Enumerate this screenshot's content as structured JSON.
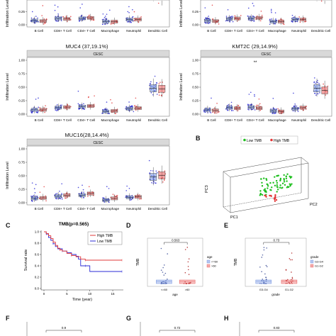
{
  "colors": {
    "low": "#2b2bd6",
    "high": "#e23838",
    "box_low": "#6f8fe0",
    "box_high": "#e85858",
    "strip": "#d9d9d9",
    "green": "#1fbf1f"
  },
  "boxplots": {
    "ylabel": "Infiltration Level",
    "yticks": [
      "0.00",
      "0.25",
      "0.50",
      "0.75",
      "1.00"
    ],
    "categories": [
      "B Cell",
      "CD8+ T Cell",
      "CD4+ T Cell",
      "Macrophage",
      "Neutrophil",
      "Dendritic Cell"
    ],
    "strip_label": "CESC",
    "top_left": {
      "title": "",
      "medians_low": [
        0.08,
        0.12,
        0.12,
        0.06,
        0.1,
        0.6
      ],
      "medians_high": [
        0.07,
        0.11,
        0.13,
        0.06,
        0.1,
        0.52
      ]
    },
    "top_right": {
      "title": "",
      "medians_low": [
        0.08,
        0.11,
        0.12,
        0.06,
        0.1,
        0.6
      ],
      "medians_high": [
        0.07,
        0.12,
        0.13,
        0.06,
        0.1,
        0.55
      ]
    },
    "muc4": {
      "title": "MUC4 (37,19.1%)",
      "sig": "",
      "medians_low": [
        0.08,
        0.12,
        0.14,
        0.05,
        0.1,
        0.48
      ],
      "medians_high": [
        0.08,
        0.13,
        0.15,
        0.06,
        0.11,
        0.47
      ]
    },
    "kmt2c": {
      "title": "KMT2C (29,14.9%)",
      "sig": "**",
      "medians_low": [
        0.08,
        0.12,
        0.13,
        0.06,
        0.1,
        0.48
      ],
      "medians_high": [
        0.07,
        0.11,
        0.11,
        0.05,
        0.12,
        0.44
      ]
    },
    "muc16": {
      "title": "MUC16(28,14.4%)",
      "sig": "",
      "medians_low": [
        0.08,
        0.12,
        0.14,
        0.05,
        0.1,
        0.48
      ],
      "medians_high": [
        0.09,
        0.14,
        0.17,
        0.08,
        0.11,
        0.51
      ]
    }
  },
  "panel_b": {
    "letter": "B",
    "legend": [
      "Low TMB",
      "High TMB"
    ],
    "axes": [
      "PC1",
      "PC2",
      "PC3"
    ]
  },
  "panel_c": {
    "letter": "C",
    "title": "TMB(p=0.565)",
    "legend": [
      "High TMB",
      "Low TMB"
    ],
    "xlabel": "Time (year)",
    "ylabel": "Survival rate",
    "xticks": [
      "0",
      "5",
      "10",
      "15"
    ],
    "yticks": [
      "0.0",
      "0.2",
      "0.4",
      "0.6",
      "0.8",
      "1.0"
    ],
    "high_tmb": [
      [
        0,
        1.0
      ],
      [
        0.5,
        0.97
      ],
      [
        1,
        0.93
      ],
      [
        1.5,
        0.88
      ],
      [
        2,
        0.82
      ],
      [
        2.5,
        0.76
      ],
      [
        3,
        0.71
      ],
      [
        3.5,
        0.68
      ],
      [
        4,
        0.66
      ],
      [
        5,
        0.62
      ],
      [
        6,
        0.58
      ],
      [
        7,
        0.56
      ],
      [
        8,
        0.52
      ],
      [
        9,
        0.5
      ],
      [
        10,
        0.5
      ],
      [
        12,
        0.5
      ],
      [
        17,
        0.5
      ]
    ],
    "low_tmb": [
      [
        0,
        1.0
      ],
      [
        0.5,
        0.96
      ],
      [
        1,
        0.9
      ],
      [
        1.5,
        0.85
      ],
      [
        2,
        0.79
      ],
      [
        2.5,
        0.74
      ],
      [
        3,
        0.7
      ],
      [
        4,
        0.66
      ],
      [
        5,
        0.63
      ],
      [
        6,
        0.6
      ],
      [
        7,
        0.57
      ],
      [
        7.5,
        0.52
      ],
      [
        8,
        0.4
      ],
      [
        9,
        0.4
      ],
      [
        10,
        0.3
      ],
      [
        11,
        0.3
      ],
      [
        17,
        0.3
      ]
    ]
  },
  "panel_d": {
    "letter": "D",
    "pvalue": "0.563",
    "xlabel": "age",
    "ylabel": "TMB",
    "groups": [
      "<=60",
      ">60"
    ],
    "legend_title": "age",
    "legend": [
      "<=60",
      ">60"
    ]
  },
  "panel_e": {
    "letter": "E",
    "pvalue": "0.73",
    "xlabel": "grade",
    "ylabel": "TMB",
    "groups": [
      "G3-G4",
      "G1-G2"
    ],
    "legend_title": "grade",
    "legend": [
      "G3-G4",
      "G1-G2"
    ]
  },
  "bottom": {
    "f": {
      "letter": "F",
      "pvalue": "0.9"
    },
    "g": {
      "letter": "G",
      "pvalue": "0.72"
    },
    "h": {
      "letter": "H",
      "pvalue": "0.83"
    }
  }
}
